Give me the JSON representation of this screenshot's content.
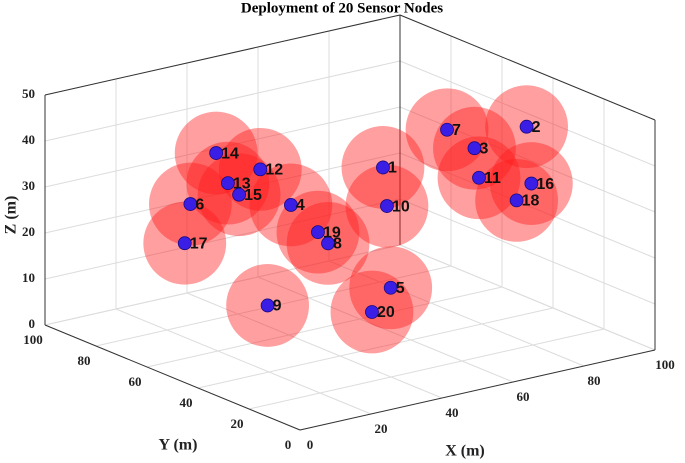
{
  "chart_data": {
    "type": "scatter3d",
    "title": "Deployment of 20 Sensor Nodes",
    "x_label": "X (m)",
    "y_label": "Y (m)",
    "z_label": "Z (m)",
    "labels": [
      "1",
      "2",
      "3",
      "4",
      "5",
      "6",
      "7",
      "8",
      "9",
      "10",
      "11",
      "12",
      "13",
      "14",
      "15",
      "16",
      "17",
      "18",
      "19",
      "20"
    ],
    "x": [
      60,
      94,
      75,
      47,
      55,
      23,
      68,
      51,
      39,
      64,
      77,
      47,
      35,
      36,
      36,
      86,
      25,
      84,
      46,
      49
    ],
    "y": [
      51,
      42,
      36,
      69,
      41,
      75,
      37,
      60,
      67,
      55,
      37,
      81,
      77,
      83,
      74,
      29,
      80,
      32,
      57,
      40
    ],
    "z": [
      35,
      40,
      40,
      25,
      12,
      28,
      45,
      18,
      5,
      25,
      33,
      30,
      30,
      35,
      28,
      32,
      18,
      28,
      22,
      8
    ],
    "radius": 9,
    "node_color": "#3a1ee6",
    "range_color": "#ff1a1a",
    "xlim": [
      0,
      100
    ],
    "ylim": [
      0,
      100
    ],
    "zlim": [
      0,
      50
    ],
    "xticks": [
      0,
      20,
      40,
      60,
      80,
      100
    ],
    "yticks": [
      0,
      20,
      40,
      60,
      80,
      100
    ],
    "zticks": [
      0,
      10,
      20,
      30,
      40,
      50
    ],
    "grid": true
  }
}
